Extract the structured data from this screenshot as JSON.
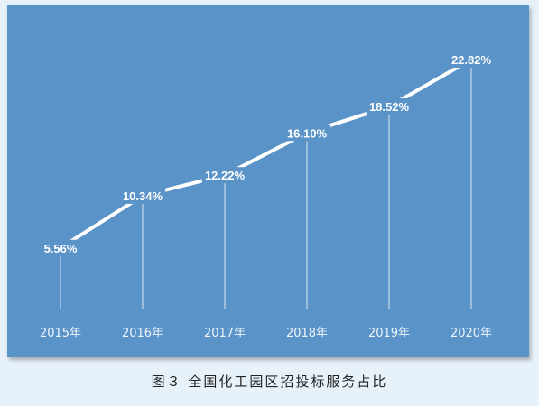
{
  "caption": "图３  全国化工园区招投标服务占比",
  "chart_data": {
    "type": "line",
    "categories": [
      "2015年",
      "2016年",
      "2017年",
      "2018年",
      "2019年",
      "2020年"
    ],
    "values": [
      5.56,
      10.34,
      12.22,
      16.1,
      18.52,
      22.82
    ],
    "data_labels": [
      "5.56%",
      "10.34%",
      "12.22%",
      "16.10%",
      "18.52%",
      "22.82%"
    ],
    "unit": "%",
    "ylim": [
      0,
      25
    ],
    "grid": false,
    "legend": "none",
    "colors": {
      "background": "#5a93c8",
      "line": "#ffffff",
      "stem": "#d7e7f5",
      "text": "#ffffff",
      "page": "#e6f1fa"
    }
  }
}
